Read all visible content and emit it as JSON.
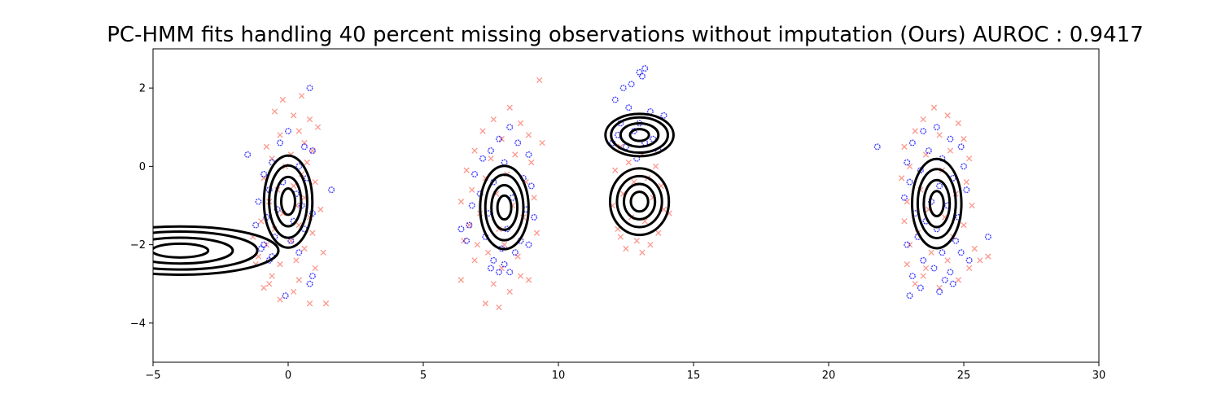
{
  "chart_data": {
    "type": "scatter",
    "title": "PC-HMM fits handling 40 percent missing observations without imputation (Ours) AUROC : 0.9417",
    "xlabel": "",
    "ylabel": "",
    "xlim": [
      -5,
      30
    ],
    "ylim": [
      -5,
      3
    ],
    "xticks": [
      -5,
      0,
      5,
      10,
      15,
      20,
      25,
      30
    ],
    "yticks": [
      -4,
      -2,
      0,
      2
    ],
    "xtick_labels": [
      "−5",
      "0",
      "5",
      "10",
      "15",
      "20",
      "25",
      "30"
    ],
    "ytick_labels": [
      "−4",
      "−2",
      "0",
      "2"
    ],
    "grid": false,
    "legend": "none",
    "series": [
      {
        "marker": "x",
        "color": "#fa8072",
        "points": [
          [
            -0.2,
            1.7
          ],
          [
            0.5,
            1.8
          ],
          [
            -0.5,
            1.4
          ],
          [
            0.2,
            1.3
          ],
          [
            0.8,
            1.2
          ],
          [
            1.1,
            1.0
          ],
          [
            0.4,
            0.9
          ],
          [
            -0.3,
            0.8
          ],
          [
            0.6,
            0.6
          ],
          [
            -0.8,
            0.5
          ],
          [
            0.9,
            0.4
          ],
          [
            0.1,
            0.3
          ],
          [
            -0.6,
            0.2
          ],
          [
            0.7,
            0.1
          ],
          [
            -0.1,
            0.0
          ],
          [
            0.5,
            -0.2
          ],
          [
            -0.9,
            -0.3
          ],
          [
            1.0,
            -0.4
          ],
          [
            0.2,
            -0.5
          ],
          [
            -0.4,
            -0.6
          ],
          [
            0.6,
            -0.8
          ],
          [
            -0.7,
            -0.9
          ],
          [
            0.3,
            -1.0
          ],
          [
            1.2,
            -1.1
          ],
          [
            -0.2,
            -1.2
          ],
          [
            0.8,
            -1.3
          ],
          [
            -1.0,
            -1.4
          ],
          [
            0.4,
            -1.5
          ],
          [
            -0.5,
            -1.6
          ],
          [
            0.9,
            -1.7
          ],
          [
            -1.3,
            -1.8
          ],
          [
            0.1,
            -1.9
          ],
          [
            -0.8,
            -2.0
          ],
          [
            0.6,
            -2.1
          ],
          [
            -1.1,
            -2.3
          ],
          [
            0.3,
            -2.4
          ],
          [
            -0.3,
            -2.5
          ],
          [
            1.0,
            -2.6
          ],
          [
            -0.6,
            -2.8
          ],
          [
            0.4,
            -2.9
          ],
          [
            -0.9,
            -3.1
          ],
          [
            0.2,
            -3.2
          ],
          [
            -0.3,
            -3.4
          ],
          [
            0.8,
            -3.5
          ],
          [
            1.4,
            -3.5
          ],
          [
            -0.7,
            -3.0
          ],
          [
            1.3,
            -2.2
          ],
          [
            -1.2,
            -2.5
          ],
          [
            8.2,
            1.5
          ],
          [
            7.6,
            1.2
          ],
          [
            8.6,
            1.1
          ],
          [
            7.2,
            0.9
          ],
          [
            8.9,
            0.8
          ],
          [
            7.9,
            0.7
          ],
          [
            9.4,
            0.6
          ],
          [
            6.9,
            0.4
          ],
          [
            8.4,
            0.3
          ],
          [
            7.5,
            0.2
          ],
          [
            9.0,
            0.1
          ],
          [
            6.6,
            -0.1
          ],
          [
            8.1,
            -0.2
          ],
          [
            7.3,
            -0.3
          ],
          [
            8.8,
            -0.4
          ],
          [
            6.8,
            -0.6
          ],
          [
            7.7,
            -0.7
          ],
          [
            9.1,
            -0.8
          ],
          [
            6.4,
            -0.9
          ],
          [
            8.3,
            -1.0
          ],
          [
            7.1,
            -1.2
          ],
          [
            8.7,
            -1.3
          ],
          [
            6.7,
            -1.5
          ],
          [
            7.8,
            -1.6
          ],
          [
            9.2,
            -1.7
          ],
          [
            6.5,
            -1.9
          ],
          [
            8.0,
            -2.0
          ],
          [
            7.4,
            -2.2
          ],
          [
            8.5,
            -2.3
          ],
          [
            6.9,
            -2.4
          ],
          [
            7.9,
            -2.6
          ],
          [
            8.6,
            -2.8
          ],
          [
            6.4,
            -2.9
          ],
          [
            7.6,
            -3.0
          ],
          [
            8.2,
            -3.2
          ],
          [
            7.3,
            -3.5
          ],
          [
            7.8,
            -3.6
          ],
          [
            9.3,
            2.2
          ],
          [
            7.0,
            -2.0
          ],
          [
            8.9,
            -2.9
          ],
          [
            12.3,
            0.5
          ],
          [
            13.1,
            0.3
          ],
          [
            12.6,
            0.1
          ],
          [
            13.6,
            0.0
          ],
          [
            12.1,
            -0.1
          ],
          [
            13.3,
            -0.3
          ],
          [
            12.8,
            -0.4
          ],
          [
            13.8,
            -0.5
          ],
          [
            12.4,
            -0.7
          ],
          [
            13.5,
            -0.8
          ],
          [
            12.0,
            -1.0
          ],
          [
            13.9,
            -1.1
          ],
          [
            12.7,
            -1.3
          ],
          [
            13.2,
            -1.4
          ],
          [
            12.2,
            -1.6
          ],
          [
            13.7,
            -1.7
          ],
          [
            12.9,
            -1.9
          ],
          [
            13.4,
            -2.0
          ],
          [
            12.5,
            -2.1
          ],
          [
            13.1,
            -2.2
          ],
          [
            14.1,
            -1.2
          ],
          [
            12.3,
            -1.8
          ],
          [
            23.9,
            1.5
          ],
          [
            24.4,
            1.3
          ],
          [
            23.5,
            1.2
          ],
          [
            24.8,
            1.1
          ],
          [
            23.2,
            0.9
          ],
          [
            24.1,
            0.8
          ],
          [
            25.0,
            0.7
          ],
          [
            22.8,
            0.5
          ],
          [
            24.5,
            0.4
          ],
          [
            23.6,
            0.3
          ],
          [
            25.2,
            0.2
          ],
          [
            23.0,
            0.0
          ],
          [
            24.2,
            -0.1
          ],
          [
            22.7,
            -0.3
          ],
          [
            25.1,
            -0.4
          ],
          [
            23.4,
            -0.6
          ],
          [
            24.7,
            -0.7
          ],
          [
            22.9,
            -0.9
          ],
          [
            25.3,
            -1.0
          ],
          [
            23.7,
            -1.1
          ],
          [
            24.3,
            -1.3
          ],
          [
            22.8,
            -1.4
          ],
          [
            25.0,
            -1.5
          ],
          [
            23.3,
            -1.7
          ],
          [
            24.6,
            -1.8
          ],
          [
            23.0,
            -2.0
          ],
          [
            25.4,
            -2.1
          ],
          [
            23.8,
            -2.2
          ],
          [
            24.4,
            -2.4
          ],
          [
            22.9,
            -2.5
          ],
          [
            25.2,
            -2.6
          ],
          [
            23.5,
            -2.8
          ],
          [
            24.8,
            -2.9
          ],
          [
            23.2,
            -3.0
          ],
          [
            25.6,
            -2.4
          ],
          [
            25.9,
            -2.3
          ],
          [
            24.1,
            -3.1
          ],
          [
            23.6,
            -2.6
          ]
        ]
      },
      {
        "marker": "o",
        "color": "#0000ff",
        "points": [
          [
            0.8,
            2.0
          ],
          [
            -0.3,
            0.6
          ],
          [
            0.6,
            0.5
          ],
          [
            -1.5,
            0.3
          ],
          [
            0.9,
            0.4
          ],
          [
            -0.6,
            0.1
          ],
          [
            0.4,
            0.0
          ],
          [
            -0.9,
            -0.2
          ],
          [
            0.7,
            -0.3
          ],
          [
            -0.2,
            -0.4
          ],
          [
            1.6,
            -0.6
          ],
          [
            -0.7,
            -0.6
          ],
          [
            0.3,
            -0.7
          ],
          [
            -1.1,
            -0.9
          ],
          [
            0.5,
            -1.0
          ],
          [
            -0.4,
            -1.1
          ],
          [
            0.9,
            -1.2
          ],
          [
            -0.8,
            -1.3
          ],
          [
            0.2,
            -1.4
          ],
          [
            -1.2,
            -1.5
          ],
          [
            0.6,
            -1.6
          ],
          [
            -0.5,
            -1.8
          ],
          [
            0.1,
            -1.9
          ],
          [
            -0.9,
            -2.0
          ],
          [
            0.4,
            -2.2
          ],
          [
            -0.6,
            -2.3
          ],
          [
            -1.0,
            -2.1
          ],
          [
            0.9,
            -2.8
          ],
          [
            0.8,
            -3.0
          ],
          [
            -0.1,
            -3.3
          ],
          [
            -0.7,
            -2.4
          ],
          [
            0.0,
            0.9
          ],
          [
            8.2,
            1.0
          ],
          [
            7.8,
            0.7
          ],
          [
            8.5,
            0.6
          ],
          [
            7.5,
            0.4
          ],
          [
            8.9,
            0.3
          ],
          [
            7.2,
            0.2
          ],
          [
            8.0,
            0.1
          ],
          [
            6.9,
            -0.2
          ],
          [
            8.7,
            -0.3
          ],
          [
            7.6,
            -0.4
          ],
          [
            9.0,
            -0.5
          ],
          [
            7.1,
            -0.7
          ],
          [
            8.3,
            -0.8
          ],
          [
            6.8,
            -1.0
          ],
          [
            8.8,
            -1.1
          ],
          [
            7.4,
            -1.2
          ],
          [
            9.1,
            -1.3
          ],
          [
            6.7,
            -1.5
          ],
          [
            8.1,
            -1.6
          ],
          [
            7.3,
            -1.8
          ],
          [
            8.6,
            -1.9
          ],
          [
            6.4,
            -1.6
          ],
          [
            7.9,
            -2.1
          ],
          [
            8.4,
            -2.2
          ],
          [
            7.6,
            -2.4
          ],
          [
            8.0,
            -2.5
          ],
          [
            7.8,
            -2.7
          ],
          [
            8.2,
            -2.7
          ],
          [
            6.6,
            -1.9
          ],
          [
            8.9,
            -2.0
          ],
          [
            7.5,
            -2.6
          ],
          [
            13.2,
            2.5
          ],
          [
            13.0,
            2.4
          ],
          [
            12.7,
            2.1
          ],
          [
            12.4,
            2.0
          ],
          [
            13.1,
            2.3
          ],
          [
            12.1,
            1.7
          ],
          [
            12.6,
            1.5
          ],
          [
            13.4,
            1.4
          ],
          [
            13.9,
            1.3
          ],
          [
            12.3,
            1.1
          ],
          [
            13.0,
            1.1
          ],
          [
            12.8,
            0.9
          ],
          [
            13.5,
            0.7
          ],
          [
            12.0,
            0.6
          ],
          [
            13.2,
            0.6
          ],
          [
            12.5,
            0.5
          ],
          [
            13.7,
            0.4
          ],
          [
            12.2,
            0.8
          ],
          [
            12.9,
            0.2
          ],
          [
            21.8,
            0.5
          ],
          [
            24.0,
            1.0
          ],
          [
            23.5,
            0.9
          ],
          [
            24.5,
            0.7
          ],
          [
            23.1,
            0.6
          ],
          [
            24.9,
            0.5
          ],
          [
            23.7,
            0.4
          ],
          [
            24.2,
            0.2
          ],
          [
            22.9,
            0.1
          ],
          [
            25.0,
            0.0
          ],
          [
            23.4,
            -0.1
          ],
          [
            24.6,
            -0.3
          ],
          [
            23.0,
            -0.4
          ],
          [
            24.1,
            -0.5
          ],
          [
            25.1,
            -0.6
          ],
          [
            22.8,
            -0.8
          ],
          [
            23.8,
            -0.9
          ],
          [
            24.4,
            -1.0
          ],
          [
            23.2,
            -1.2
          ],
          [
            24.8,
            -1.3
          ],
          [
            23.6,
            -1.4
          ],
          [
            24.0,
            -1.6
          ],
          [
            23.3,
            -1.8
          ],
          [
            24.7,
            -1.9
          ],
          [
            22.9,
            -2.0
          ],
          [
            24.2,
            -2.2
          ],
          [
            23.5,
            -2.4
          ],
          [
            25.2,
            -2.4
          ],
          [
            23.9,
            -2.6
          ],
          [
            24.5,
            -2.7
          ],
          [
            23.1,
            -2.8
          ],
          [
            24.3,
            -2.9
          ],
          [
            23.4,
            -3.1
          ],
          [
            24.6,
            -3.0
          ],
          [
            23.0,
            -3.3
          ],
          [
            24.1,
            -3.2
          ],
          [
            25.9,
            -1.8
          ],
          [
            24.9,
            -2.2
          ]
        ]
      }
    ],
    "ellipses": [
      {
        "cx": -4.0,
        "cy": -2.15,
        "sx": 1.3,
        "sy": 0.22,
        "levels": [
          0.8,
          1.5,
          2.2,
          2.8
        ]
      },
      {
        "cx": 0.0,
        "cy": -0.9,
        "sx": 0.32,
        "sy": 0.42,
        "levels": [
          0.8,
          1.5,
          2.2,
          2.8
        ]
      },
      {
        "cx": 8.0,
        "cy": -1.05,
        "sx": 0.32,
        "sy": 0.38,
        "levels": [
          0.8,
          1.5,
          2.2,
          2.8
        ]
      },
      {
        "cx": 13.0,
        "cy": 0.8,
        "sx": 0.35,
        "sy": 0.15,
        "levels": [
          1.0,
          2.0,
          3.0,
          3.6
        ]
      },
      {
        "cx": 13.0,
        "cy": -0.9,
        "sx": 0.32,
        "sy": 0.25,
        "levels": [
          1.0,
          1.8,
          2.6,
          3.4
        ]
      },
      {
        "cx": 24.0,
        "cy": -0.95,
        "sx": 0.32,
        "sy": 0.4,
        "levels": [
          0.8,
          1.5,
          2.2,
          2.85
        ]
      }
    ]
  }
}
